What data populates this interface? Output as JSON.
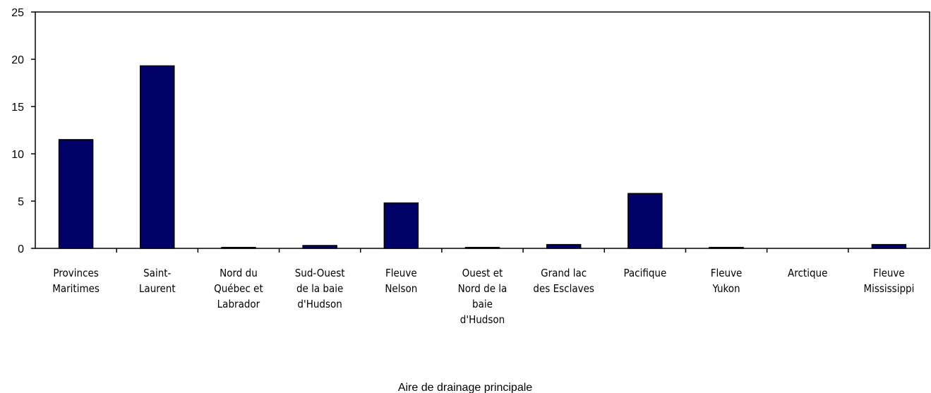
{
  "chart_data": {
    "type": "bar",
    "x_label": "Aire de drainage principale",
    "categories": [
      "Provinces\nMaritimes",
      "Saint-\nLaurent",
      "Nord du\nQuébec et\nLabrador",
      "Sud-Ouest\nde la baie\nd'Hudson",
      "Fleuve\nNelson",
      "Ouest et\nNord de la\nbaie\nd'Hudson",
      "Grand lac\ndes Esclaves",
      "Pacifique",
      "Fleuve\nYukon",
      "Arctique",
      "Fleuve\nMississippi"
    ],
    "values": [
      11.5,
      19.3,
      0.1,
      0.3,
      4.8,
      0.1,
      0.4,
      5.8,
      0.1,
      0,
      0.4
    ],
    "color": "#000066",
    "ylim": [
      0,
      25
    ],
    "yticks": [
      0,
      5,
      10,
      15,
      20,
      25
    ],
    "grid": false
  }
}
